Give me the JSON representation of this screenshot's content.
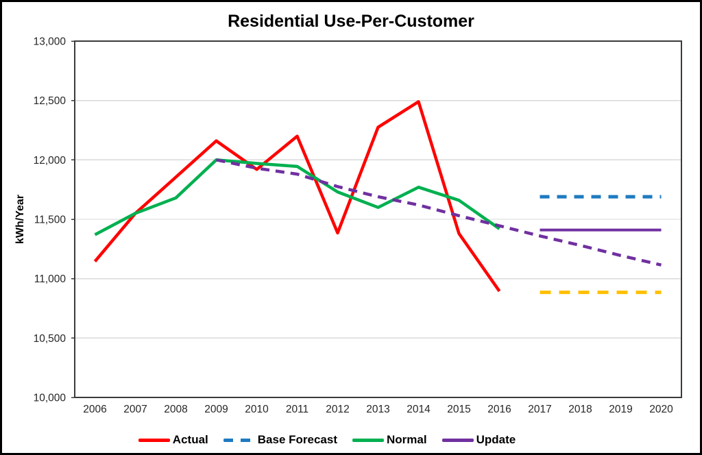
{
  "frame": {
    "background": "#FFFFFF",
    "border_color": "#000000"
  },
  "colors": {
    "grid": "#D9D9D9",
    "plot_border": "#3A3A3A",
    "tick_text": "#262626",
    "title_text": "#000000",
    "actual_red": "#FF0000",
    "normal_green": "#00B050",
    "update_purple": "#7030A0",
    "base_forecast_blue": "#1F7AC0",
    "band_gold": "#FFC000"
  },
  "chart_data": {
    "type": "line",
    "title": "Residential Use-Per-Customer",
    "ylabel": "kWh/Year",
    "xlabel": "",
    "x": [
      "2006",
      "2007",
      "2008",
      "2009",
      "2010",
      "2011",
      "2012",
      "2013",
      "2014",
      "2015",
      "2016",
      "2017",
      "2018",
      "2019",
      "2020"
    ],
    "ylim": [
      10000,
      13000
    ],
    "yticks": [
      {
        "value": 13000,
        "label": "13,000"
      },
      {
        "value": 12500,
        "label": "12,500"
      },
      {
        "value": 12000,
        "label": "12,000"
      },
      {
        "value": 11500,
        "label": "11,500"
      },
      {
        "value": 11000,
        "label": "11,000"
      },
      {
        "value": 10500,
        "label": "10,500"
      },
      {
        "value": 10000,
        "label": "10,000"
      }
    ],
    "grid": "horizontal",
    "legend_position": "bottom-center",
    "series": [
      {
        "id": "actual",
        "legend_label": "Actual",
        "color": "#FF0000",
        "line_style": "solid",
        "stroke_width": 4.5,
        "values": [
          11145,
          11550,
          11855,
          12160,
          11920,
          12200,
          11385,
          12275,
          12490,
          11380,
          10895,
          null,
          null,
          null,
          null
        ]
      },
      {
        "id": "normal",
        "legend_label": "Normal",
        "color": "#00B050",
        "line_style": "solid",
        "stroke_width": 4.5,
        "values": [
          11370,
          11550,
          11680,
          12000,
          11970,
          11945,
          11730,
          11600,
          11770,
          11660,
          11420,
          null,
          null,
          null,
          null
        ]
      },
      {
        "id": "update-trajectory",
        "legend_label": null,
        "color": "#7030A0",
        "line_style": "dashed",
        "stroke_width": 4.5,
        "values": [
          null,
          null,
          null,
          12000,
          11930,
          11880,
          11775,
          11690,
          11620,
          11530,
          11445,
          11360,
          11280,
          11195,
          11115
        ]
      },
      {
        "id": "base-forecast",
        "legend_label": "Base Forecast",
        "color": "#1F7AC0",
        "line_style": "dashed",
        "stroke_width": 5,
        "values": [
          null,
          null,
          null,
          null,
          null,
          null,
          null,
          null,
          null,
          null,
          null,
          11690,
          11690,
          11690,
          11690
        ]
      },
      {
        "id": "update",
        "legend_label": "Update",
        "color": "#7030A0",
        "line_style": "solid",
        "stroke_width": 4,
        "values": [
          null,
          null,
          null,
          null,
          null,
          null,
          null,
          null,
          null,
          null,
          null,
          11410,
          11410,
          11410,
          11410
        ]
      },
      {
        "id": "low-band",
        "legend_label": null,
        "color": "#FFC000",
        "line_style": "dashed",
        "stroke_width": 5,
        "values": [
          null,
          null,
          null,
          null,
          null,
          null,
          null,
          null,
          null,
          null,
          null,
          10885,
          10885,
          10885,
          10885
        ]
      }
    ],
    "legend": [
      {
        "label": "Actual",
        "color": "#FF0000",
        "dash": false
      },
      {
        "label": "Base Forecast",
        "color": "#1F7AC0",
        "dash": true
      },
      {
        "label": "Normal",
        "color": "#00B050",
        "dash": false
      },
      {
        "label": "Update",
        "color": "#7030A0",
        "dash": false
      }
    ]
  }
}
